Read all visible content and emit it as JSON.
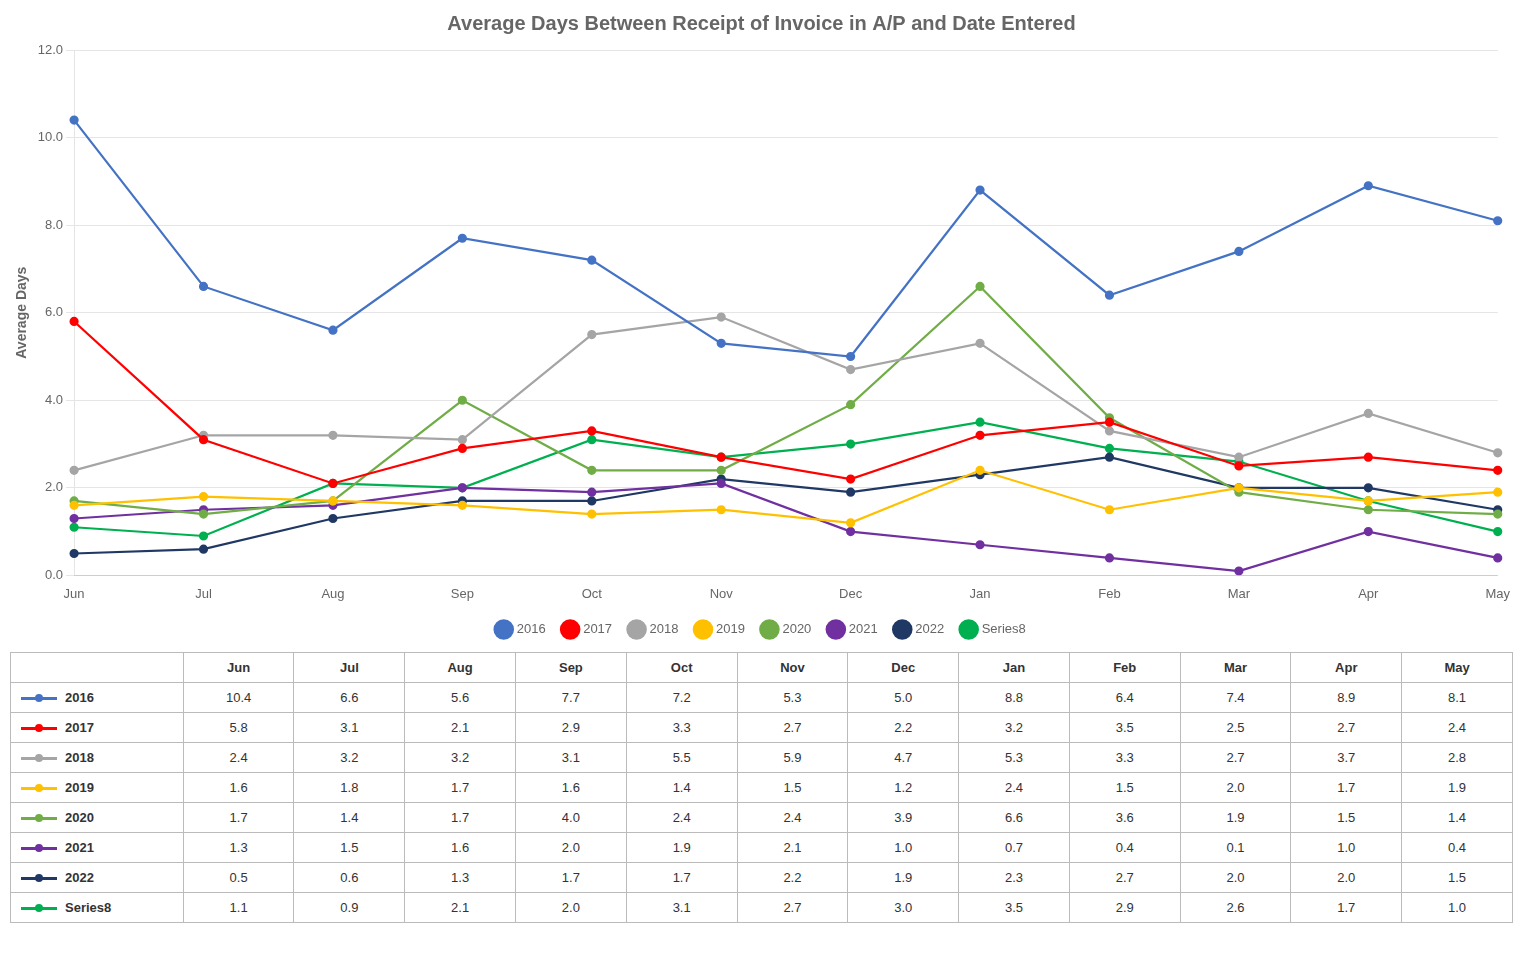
{
  "chart_data": {
    "type": "line",
    "title": "Average Days Between Receipt of Invoice in A/P and Date Entered",
    "y_label": "Average Days",
    "categories": [
      "Jun",
      "Jul",
      "Aug",
      "Sep",
      "Oct",
      "Nov",
      "Dec",
      "Jan",
      "Feb",
      "Mar",
      "Apr",
      "May"
    ],
    "series": [
      {
        "name": "2016",
        "color": "#4472C4",
        "values": [
          10.4,
          6.6,
          5.6,
          7.7,
          7.2,
          5.3,
          5.0,
          8.8,
          6.4,
          7.4,
          8.9,
          8.1
        ]
      },
      {
        "name": "2017",
        "color": "#FF0000",
        "values": [
          5.8,
          3.1,
          2.1,
          2.9,
          3.3,
          2.7,
          2.2,
          3.2,
          3.5,
          2.5,
          2.7,
          2.4
        ]
      },
      {
        "name": "2018",
        "color": "#A5A5A5",
        "values": [
          2.4,
          3.2,
          3.2,
          3.1,
          5.5,
          5.9,
          4.7,
          5.3,
          3.3,
          2.7,
          3.7,
          2.8
        ]
      },
      {
        "name": "2019",
        "color": "#FFC000",
        "values": [
          1.6,
          1.8,
          1.7,
          1.6,
          1.4,
          1.5,
          1.2,
          2.4,
          1.5,
          2.0,
          1.7,
          1.9
        ]
      },
      {
        "name": "2020",
        "color": "#70AD47",
        "values": [
          1.7,
          1.4,
          1.7,
          4.0,
          2.4,
          2.4,
          3.9,
          6.6,
          3.6,
          1.9,
          1.5,
          1.4
        ]
      },
      {
        "name": "2021",
        "color": "#7030A0",
        "values": [
          1.3,
          1.5,
          1.6,
          2.0,
          1.9,
          2.1,
          1.0,
          0.7,
          0.4,
          0.1,
          1.0,
          0.4
        ]
      },
      {
        "name": "2022",
        "color": "#203864",
        "values": [
          0.5,
          0.6,
          1.3,
          1.7,
          1.7,
          2.2,
          1.9,
          2.3,
          2.7,
          2.0,
          2.0,
          1.5
        ]
      },
      {
        "name": "Series8",
        "color": "#00B050",
        "values": [
          1.1,
          0.9,
          2.1,
          2.0,
          3.1,
          2.7,
          3.0,
          3.5,
          2.9,
          2.6,
          1.7,
          1.0
        ]
      }
    ],
    "ylim": [
      0.0,
      12.0
    ],
    "yticks": [
      {
        "value": 0,
        "label": "0.0"
      },
      {
        "value": 2,
        "label": "2.0"
      },
      {
        "value": 4,
        "label": "4.0"
      },
      {
        "value": 6,
        "label": "6.0"
      },
      {
        "value": 8,
        "label": "8.0"
      },
      {
        "value": 10,
        "label": "10.0"
      },
      {
        "value": 12,
        "label": "12.0"
      }
    ],
    "grid": true,
    "legend": "bottom",
    "marker": "circle",
    "line_style": "solid"
  }
}
